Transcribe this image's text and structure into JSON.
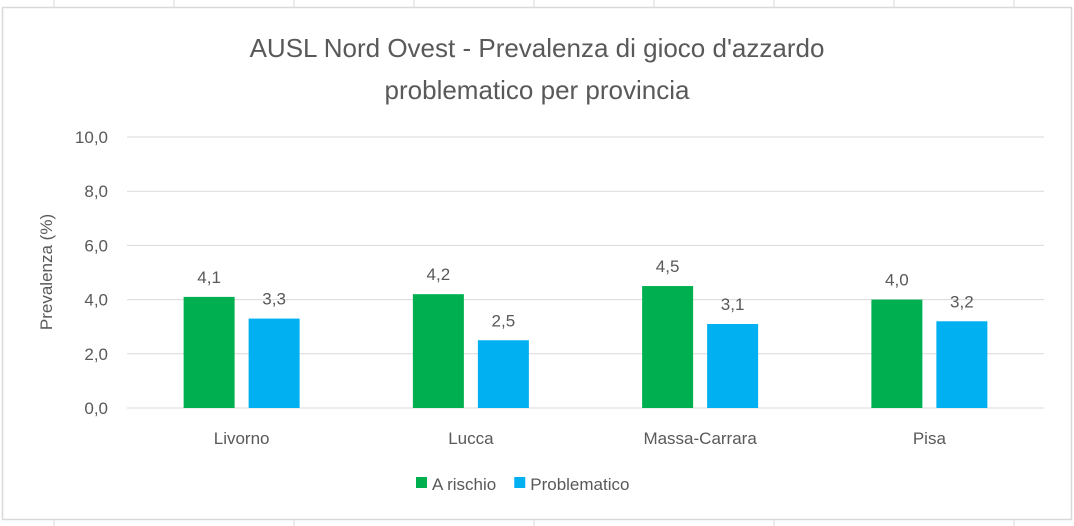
{
  "chart_data": {
    "type": "bar",
    "title_lines": [
      "AUSL Nord Ovest - Prevalenza di gioco d'azzardo",
      "problematico per provincia"
    ],
    "xlabel": "",
    "ylabel": "Prevalenza (%)",
    "ylim": [
      0,
      10
    ],
    "yticks": [
      "0,0",
      "2,0",
      "4,0",
      "6,0",
      "8,0",
      "10,0"
    ],
    "ytick_values": [
      0,
      2,
      4,
      6,
      8,
      10
    ],
    "grid": true,
    "legend_position": "bottom",
    "categories": [
      "Livorno",
      "Lucca",
      "Massa-Carrara",
      "Pisa"
    ],
    "series": [
      {
        "name": "A rischio",
        "color": "#00B050",
        "values": [
          4.1,
          4.2,
          4.5,
          4.0
        ],
        "labels": [
          "4,1",
          "4,2",
          "4,5",
          "4,0"
        ]
      },
      {
        "name": "Problematico",
        "color": "#00B0F0",
        "values": [
          3.3,
          2.5,
          3.1,
          3.2
        ],
        "labels": [
          "3,3",
          "2,5",
          "3,1",
          "3,2"
        ]
      }
    ]
  }
}
